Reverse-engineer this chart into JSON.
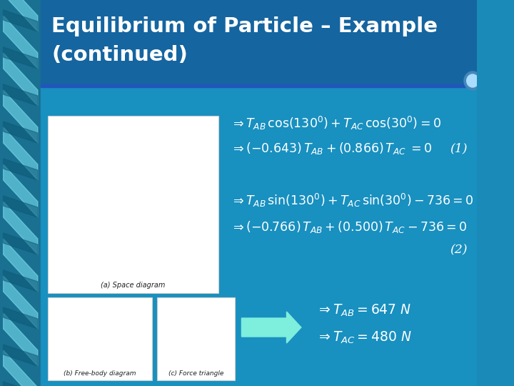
{
  "title_line1": "Equilibrium of Particle – Example",
  "title_line2": "(continued)",
  "slide_bg": "#1a8ab8",
  "header_bg": "#1565a0",
  "content_bg": "#1890c0",
  "title_color": "#ffffff",
  "text_color": "#ffffff",
  "stripe_light": "#7ee8f8",
  "stripe_dark": "#0d5a78",
  "stripe_mid": "#1a7090",
  "divider_color": "#2255bb",
  "arrow_color": "#7eeedd",
  "label1": "(1)",
  "label2": "(2)",
  "caption_a": "(a) Space diagram",
  "caption_b": "(b) Free-body diagram",
  "caption_c": "(c) Force triangle"
}
